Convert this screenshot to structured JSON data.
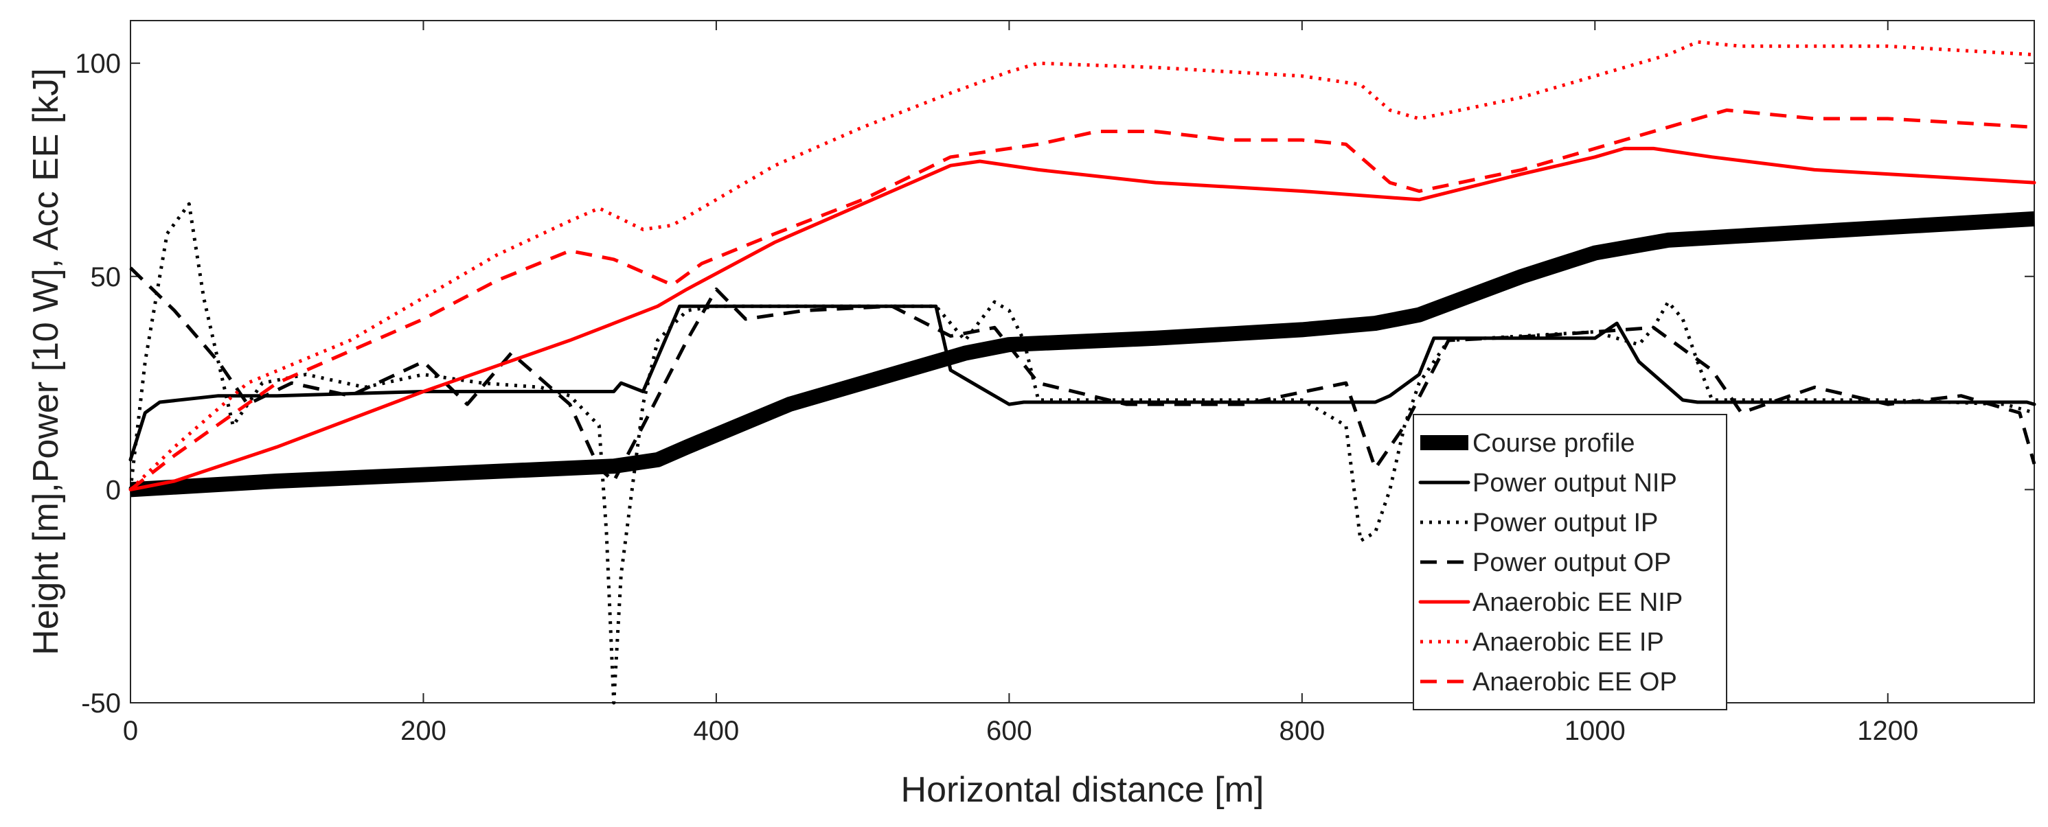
{
  "chart_data": {
    "type": "line",
    "title": "",
    "xlabel": "Horizontal distance [m]",
    "ylabel": "Height [m],Power [10 W], Acc EE [kJ]",
    "xlim": [
      0,
      1300
    ],
    "ylim": [
      -50,
      110
    ],
    "xticks": [
      0,
      200,
      400,
      600,
      800,
      1000,
      1200
    ],
    "yticks": [
      -50,
      0,
      50,
      100
    ],
    "grid": false,
    "legend_position": "bottom-right",
    "series": [
      {
        "name": "Course profile",
        "color": "#000000",
        "style": "solid-thick",
        "x": [
          0,
          100,
          200,
          330,
          360,
          380,
          450,
          520,
          570,
          600,
          700,
          800,
          850,
          880,
          950,
          1000,
          1050,
          1100,
          1200,
          1300
        ],
        "y": [
          0,
          2,
          3.5,
          5.5,
          7,
          10,
          20,
          27,
          32,
          34,
          35.5,
          37.5,
          39,
          41,
          50,
          55.5,
          58.5,
          59.5,
          61.5,
          63.5
        ]
      },
      {
        "name": "Power output NIP",
        "color": "#000000",
        "style": "solid",
        "x": [
          0,
          10,
          20,
          60,
          100,
          200,
          330,
          335,
          350,
          375,
          550,
          560,
          580,
          600,
          610,
          850,
          860,
          880,
          890,
          1000,
          1015,
          1030,
          1060,
          1070,
          1200,
          1295,
          1300
        ],
        "y": [
          7,
          18,
          20.5,
          22,
          22,
          23,
          23,
          25,
          23,
          43,
          43,
          28,
          24,
          20,
          20.5,
          20.5,
          22,
          27,
          35.5,
          35.5,
          39,
          30,
          21,
          20.5,
          20.5,
          20.5,
          20
        ]
      },
      {
        "name": "Power output IP",
        "color": "#000000",
        "style": "dotted",
        "x": [
          0,
          10,
          25,
          40,
          50,
          60,
          70,
          90,
          120,
          160,
          200,
          240,
          280,
          300,
          320,
          325,
          330,
          335,
          350,
          360,
          380,
          400,
          550,
          570,
          590,
          600,
          610,
          620,
          650,
          700,
          800,
          830,
          840,
          850,
          860,
          870,
          880,
          900,
          950,
          1000,
          1030,
          1040,
          1050,
          1060,
          1070,
          1080,
          1100,
          1200,
          1280,
          1300
        ],
        "y": [
          0,
          30,
          60,
          67,
          45,
          30,
          15,
          25,
          27,
          24,
          27,
          25,
          24,
          22,
          15,
          -10,
          -50,
          -20,
          20,
          35,
          42,
          43,
          43,
          35,
          44,
          42,
          35,
          21,
          21,
          21,
          21,
          15,
          -12,
          -10,
          0,
          15,
          25,
          35,
          36,
          37,
          34,
          38,
          44,
          40,
          30,
          21,
          21,
          21,
          20,
          18
        ]
      },
      {
        "name": "Power output OP",
        "color": "#000000",
        "style": "dashed",
        "x": [
          0,
          30,
          60,
          80,
          110,
          150,
          200,
          230,
          260,
          300,
          320,
          330,
          350,
          380,
          400,
          420,
          460,
          520,
          560,
          590,
          620,
          680,
          760,
          830,
          850,
          870,
          900,
          960,
          1040,
          1080,
          1100,
          1150,
          1200,
          1250,
          1290,
          1300
        ],
        "y": [
          52,
          42,
          30,
          20,
          25,
          22,
          30,
          20,
          32,
          20,
          5,
          2,
          15,
          35,
          47,
          40,
          42,
          43,
          36,
          38,
          25,
          20,
          20,
          25,
          5,
          15,
          35,
          36,
          38,
          28,
          18,
          24,
          20,
          22,
          18,
          6
        ]
      },
      {
        "name": "Anaerobic EE NIP",
        "color": "#ff0000",
        "style": "solid",
        "x": [
          0,
          30,
          100,
          200,
          300,
          330,
          360,
          380,
          440,
          500,
          560,
          580,
          620,
          700,
          800,
          880,
          950,
          1000,
          1020,
          1040,
          1080,
          1150,
          1200,
          1300
        ],
        "y": [
          0,
          2,
          10,
          23,
          35,
          39,
          43,
          47,
          58,
          67,
          76,
          77,
          75,
          72,
          70,
          68,
          74,
          78,
          80,
          80,
          78,
          75,
          74,
          72
        ]
      },
      {
        "name": "Anaerobic EE IP",
        "color": "#ff0000",
        "style": "dotted",
        "x": [
          0,
          30,
          80,
          150,
          200,
          250,
          300,
          320,
          350,
          370,
          440,
          500,
          560,
          600,
          620,
          700,
          800,
          840,
          860,
          880,
          950,
          1000,
          1050,
          1070,
          1100,
          1200,
          1300
        ],
        "y": [
          0,
          10,
          25,
          35,
          45,
          55,
          63,
          66,
          61,
          62,
          76,
          85,
          93,
          98,
          100,
          99,
          97,
          95,
          89,
          87,
          92,
          97,
          102,
          105,
          104,
          104,
          102
        ]
      },
      {
        "name": "Anaerobic EE OP",
        "color": "#ff0000",
        "style": "dashed",
        "x": [
          0,
          30,
          100,
          200,
          250,
          300,
          330,
          370,
          390,
          440,
          500,
          560,
          620,
          660,
          700,
          750,
          800,
          830,
          860,
          880,
          950,
          1000,
          1050,
          1090,
          1150,
          1200,
          1300
        ],
        "y": [
          0,
          8,
          25,
          40,
          49,
          56,
          54,
          48,
          53,
          60,
          68,
          78,
          81,
          84,
          84,
          82,
          82,
          81,
          72,
          70,
          75,
          80,
          85,
          89,
          87,
          87,
          85
        ]
      }
    ]
  }
}
